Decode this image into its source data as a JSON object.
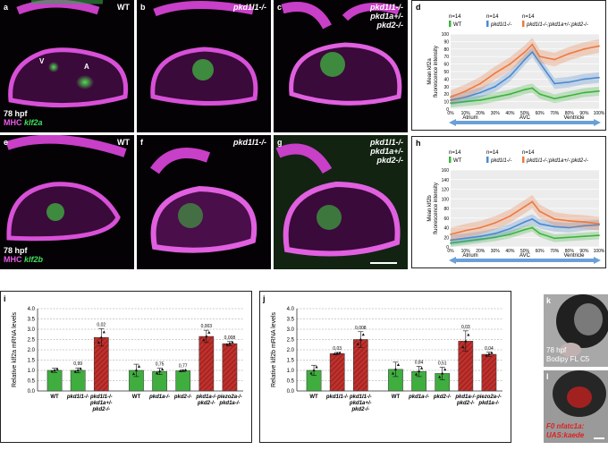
{
  "panels": {
    "a": {
      "letter": "a",
      "genotype": "WT",
      "v": "V",
      "a_label": "A",
      "time": "78 hpf",
      "stain1": "MHC",
      "stain2": "klf2a"
    },
    "b": {
      "letter": "b",
      "genotype": "pkd1l1-/-"
    },
    "c": {
      "letter": "c",
      "genotype_lines": [
        "pkd1l1-/-",
        "pkd1a+/-",
        "pkd2-/-"
      ]
    },
    "e": {
      "letter": "e",
      "genotype": "WT",
      "time": "78 hpf",
      "stain1": "MHC",
      "stain2": "klf2b"
    },
    "f": {
      "letter": "f",
      "genotype": "pkd1l1-/-"
    },
    "g": {
      "letter": "g",
      "genotype_lines": [
        "pkd1l1-/-",
        "pkd1a+/-",
        "pkd2-/-"
      ]
    },
    "k": {
      "letter": "k",
      "time": "78 hpf",
      "stain": "Bodipy FL C5"
    },
    "l": {
      "letter": "l",
      "line1": "F0 nfatc1a:",
      "line2": "UAS:kaede"
    }
  },
  "chart_data": [
    {
      "id": "d",
      "letter": "d",
      "type": "line",
      "ylabel_lines": [
        "Mean klf2a",
        "fluorescence intensity"
      ],
      "ylim": [
        0,
        100
      ],
      "yticks": [
        "0",
        "10",
        "20",
        "30",
        "40",
        "50",
        "60",
        "70",
        "80",
        "90",
        "100"
      ],
      "xticks": [
        "0%",
        "10%",
        "20%",
        "30%",
        "40%",
        "50%",
        "60%",
        "70%",
        "80%",
        "90%",
        "100%"
      ],
      "regions": [
        "Atrium",
        "AVC",
        "Ventricle"
      ],
      "ns": [
        "n=14",
        "n=14",
        "n=14"
      ],
      "legend": [
        "WT",
        "pkd1l1-/-",
        "pkd1l1-/-;pkd1a+/-;pkd2-/-"
      ],
      "series": [
        {
          "name": "WT",
          "color": "#3cb43c",
          "band": 6,
          "x": [
            0,
            10,
            20,
            30,
            40,
            50,
            55,
            60,
            70,
            80,
            90,
            100
          ],
          "values": [
            8,
            10,
            12,
            16,
            20,
            26,
            28,
            20,
            14,
            18,
            22,
            24
          ]
        },
        {
          "name": "pkd1l1-/-",
          "color": "#4a8ad0",
          "band": 7,
          "x": [
            0,
            10,
            20,
            30,
            40,
            50,
            55,
            60,
            70,
            80,
            90,
            100
          ],
          "values": [
            12,
            16,
            22,
            30,
            44,
            66,
            76,
            62,
            34,
            36,
            40,
            42
          ]
        },
        {
          "name": "pkd1l1-/-;pkd1a+/-;pkd2-/-",
          "color": "#ec7a40",
          "band": 9,
          "x": [
            0,
            10,
            20,
            30,
            40,
            50,
            55,
            60,
            70,
            80,
            90,
            100
          ],
          "values": [
            16,
            24,
            34,
            48,
            60,
            76,
            86,
            70,
            66,
            74,
            80,
            84
          ]
        }
      ]
    },
    {
      "id": "h",
      "letter": "h",
      "type": "line",
      "ylabel_lines": [
        "Mean klf2b",
        "fluorescence intensity"
      ],
      "ylim": [
        0,
        160
      ],
      "yticks": [
        "0",
        "20",
        "40",
        "60",
        "80",
        "100",
        "120",
        "140",
        "160"
      ],
      "xticks": [
        "0%",
        "10%",
        "20%",
        "30%",
        "40%",
        "50%",
        "60%",
        "70%",
        "80%",
        "90%",
        "100%"
      ],
      "regions": [
        "Atrium",
        "AVC",
        "Ventricle"
      ],
      "ns": [
        "n=14",
        "n=14",
        "n=14"
      ],
      "legend": [
        "WT",
        "pkd1l1-/-",
        "pkd1l1-/-;pkd1a+/-;pkd2-/-"
      ],
      "series": [
        {
          "name": "WT",
          "color": "#3cb43c",
          "band": 8,
          "x": [
            0,
            10,
            20,
            30,
            40,
            50,
            55,
            60,
            70,
            80,
            90,
            100
          ],
          "values": [
            8,
            12,
            16,
            20,
            26,
            36,
            40,
            28,
            18,
            20,
            22,
            24
          ]
        },
        {
          "name": "pkd1l1-/-",
          "color": "#4a8ad0",
          "band": 10,
          "x": [
            0,
            10,
            20,
            30,
            40,
            50,
            55,
            60,
            70,
            80,
            90,
            100
          ],
          "values": [
            14,
            18,
            22,
            28,
            38,
            52,
            58,
            48,
            42,
            40,
            44,
            46
          ]
        },
        {
          "name": "pkd1l1-/-;pkd1a+/-;pkd2-/-",
          "color": "#ec7a40",
          "band": 14,
          "x": [
            0,
            10,
            20,
            30,
            40,
            50,
            55,
            60,
            70,
            80,
            90,
            100
          ],
          "values": [
            26,
            34,
            40,
            50,
            64,
            84,
            94,
            74,
            58,
            54,
            52,
            48
          ]
        }
      ]
    },
    {
      "id": "i",
      "letter": "i",
      "type": "bar",
      "ylabel": "Relative klf2a mRNA levels",
      "ylim": [
        0,
        4
      ],
      "yticks": [
        "0.0",
        "0.5",
        "1.0",
        "1.5",
        "2.0",
        "2.5",
        "3.0",
        "3.5",
        "4.0"
      ],
      "categories": [
        {
          "label": [
            "WT"
          ],
          "value": 1.0,
          "err": 0.1,
          "kind": "wt",
          "p": ""
        },
        {
          "label": [
            "pkd1l1-/-"
          ],
          "value": 1.0,
          "err": 0.12,
          "kind": "wt",
          "p": "0,99"
        },
        {
          "label": [
            "pkd1l1-/-",
            "pkd1a+/-",
            "pkd2-/-"
          ],
          "value": 2.6,
          "err": 0.42,
          "kind": "mut",
          "p": "0,02"
        },
        {
          "label": [
            "WT"
          ],
          "value": 1.0,
          "err": 0.3,
          "kind": "wt",
          "p": ""
        },
        {
          "label": [
            "pkd1a-/-"
          ],
          "value": 0.95,
          "err": 0.15,
          "kind": "wt",
          "p": "0,75"
        },
        {
          "label": [
            "pkd2-/-"
          ],
          "value": 0.98,
          "err": 0.04,
          "kind": "wt",
          "p": "0,77"
        },
        {
          "label": [
            "pkd1a-/-",
            "pkd2-/-"
          ],
          "value": 2.65,
          "err": 0.3,
          "kind": "mut",
          "p": "0,003"
        },
        {
          "label": [
            "piezo2a-/-",
            "pkd1a-/-"
          ],
          "value": 2.3,
          "err": 0.1,
          "kind": "mut",
          "p": "0,008"
        }
      ]
    },
    {
      "id": "j",
      "letter": "j",
      "type": "bar",
      "ylabel": "Relative klf2b mRNA levels",
      "ylim": [
        0,
        4
      ],
      "yticks": [
        "0.0",
        "0.5",
        "1.0",
        "1.5",
        "2.0",
        "2.5",
        "3.0",
        "3.5",
        "4.0"
      ],
      "categories": [
        {
          "label": [
            "WT"
          ],
          "value": 1.0,
          "err": 0.25,
          "kind": "wt",
          "p": ""
        },
        {
          "label": [
            "pkd1l1-/-"
          ],
          "value": 1.82,
          "err": 0.05,
          "kind": "mut",
          "p": "0,03"
        },
        {
          "label": [
            "pkd1l1-/-",
            "pkd1a+/-",
            "pkd2-/-"
          ],
          "value": 2.5,
          "err": 0.38,
          "kind": "mut",
          "p": "0,008"
        },
        {
          "label": [
            "WT"
          ],
          "value": 1.05,
          "err": 0.35,
          "kind": "wt",
          "p": ""
        },
        {
          "label": [
            "pkd1a-/-"
          ],
          "value": 0.95,
          "err": 0.25,
          "kind": "wt",
          "p": "0,84"
        },
        {
          "label": [
            "pkd2-/-"
          ],
          "value": 0.85,
          "err": 0.3,
          "kind": "wt",
          "p": "0,51"
        },
        {
          "label": [
            "pkd1a-/-",
            "pkd2-/-"
          ],
          "value": 2.42,
          "err": 0.5,
          "kind": "mut",
          "p": "0,03"
        },
        {
          "label": [
            "piezo2a-/-",
            "pkd1a-/-"
          ],
          "value": 1.78,
          "err": 0.1,
          "kind": "mut",
          "p": "0,04"
        }
      ]
    }
  ]
}
